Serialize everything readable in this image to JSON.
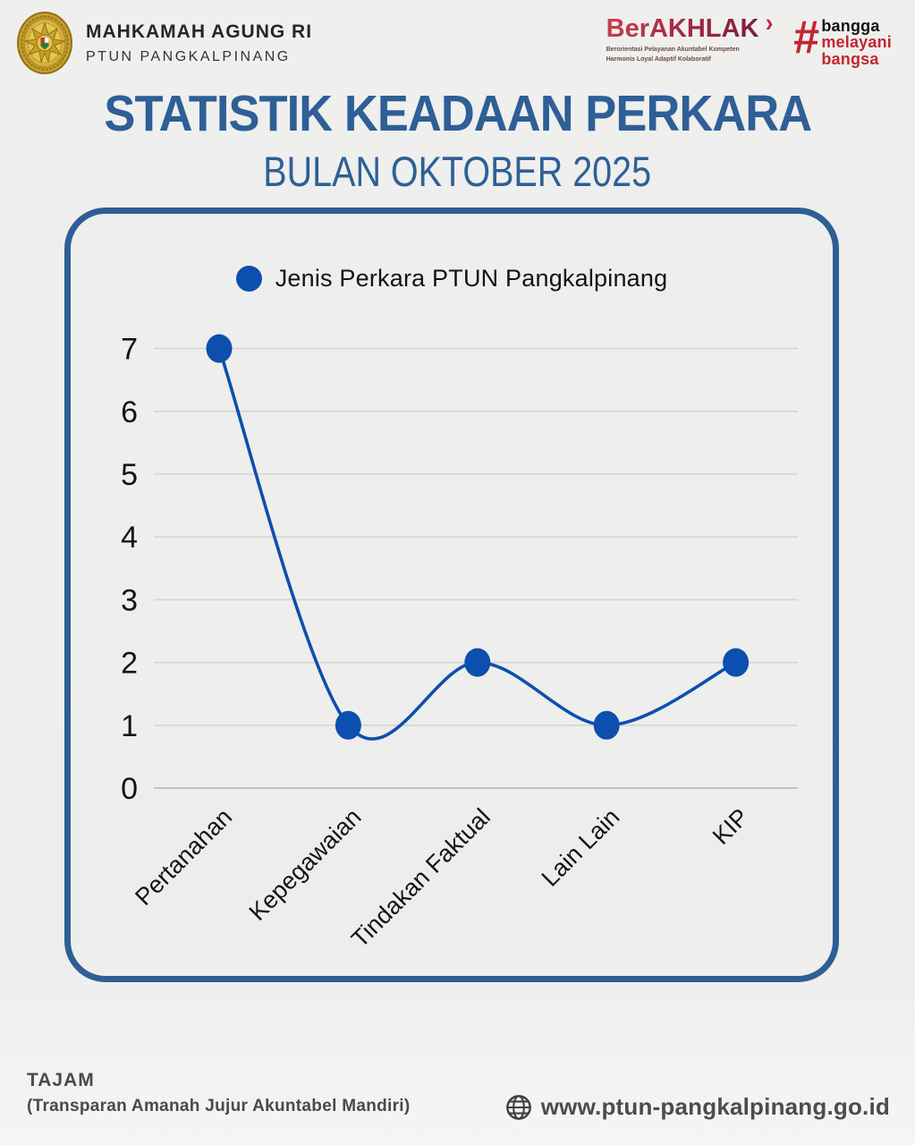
{
  "header": {
    "org_name": "MAHKAMAH AGUNG RI",
    "org_unit": "PTUN PANGKALPINANG",
    "berakhlak": {
      "brand": "BerAKHLAK",
      "chevron": "›",
      "tagline_line1": "Berorientasi Pelayanan Akuntabel Kompeten",
      "tagline_line2": "Harmonis Loyal Adaptif Kolaboratif"
    },
    "bangga": {
      "hash": "#",
      "line1": "bangga",
      "line2": "melayani",
      "line3": "bangsa"
    }
  },
  "title": "STATISTIK KEADAAN PERKARA",
  "subtitle": "BULAN OKTOBER 2025",
  "chart_data": {
    "type": "line",
    "legend": "Jenis Perkara PTUN Pangkalpinang",
    "categories": [
      "Pertanahan",
      "Kepegawaian",
      "Tindakan Faktual",
      "Lain Lain",
      "KIP"
    ],
    "values": [
      7,
      1,
      2,
      1,
      2
    ],
    "ylim": [
      0,
      7
    ],
    "yticks": [
      0,
      1,
      2,
      3,
      4,
      5,
      6,
      7
    ],
    "grid": true,
    "legend_position": "top-center",
    "colors": {
      "line": "#0d4fae",
      "marker": "#0d4fae",
      "grid": "#d5d5d3",
      "grid_zero": "#c3c3c1"
    }
  },
  "footer": {
    "motto": "TAJAM",
    "motto_expansion": "(Transparan Amanah Jujur Akuntabel Mandiri)",
    "website": "www.ptun-pangkalpinang.go.id"
  },
  "colors": {
    "title_blue": "#2e5f96",
    "panel_border_blue": "#2d5f94",
    "berakhlak_red": "#a02744",
    "hashtag_red": "#c22731",
    "background": "#efefee"
  }
}
